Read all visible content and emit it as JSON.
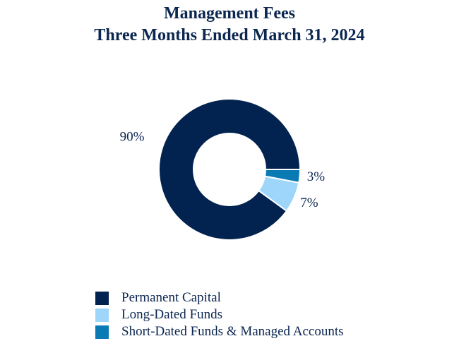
{
  "chart_data": {
    "type": "pie",
    "style": "donut",
    "title": "Management Fees",
    "subtitle": "Three Months Ended March 31, 2024",
    "categories": [
      "Permanent Capital",
      "Long-Dated Funds",
      "Short-Dated Funds & Managed Accounts"
    ],
    "values": [
      90,
      7,
      3
    ],
    "labels": [
      "90%",
      "7%",
      "3%"
    ],
    "colors": [
      "#02234f",
      "#9ed6fb",
      "#0a7ab4"
    ],
    "legend_position": "bottom-left"
  }
}
